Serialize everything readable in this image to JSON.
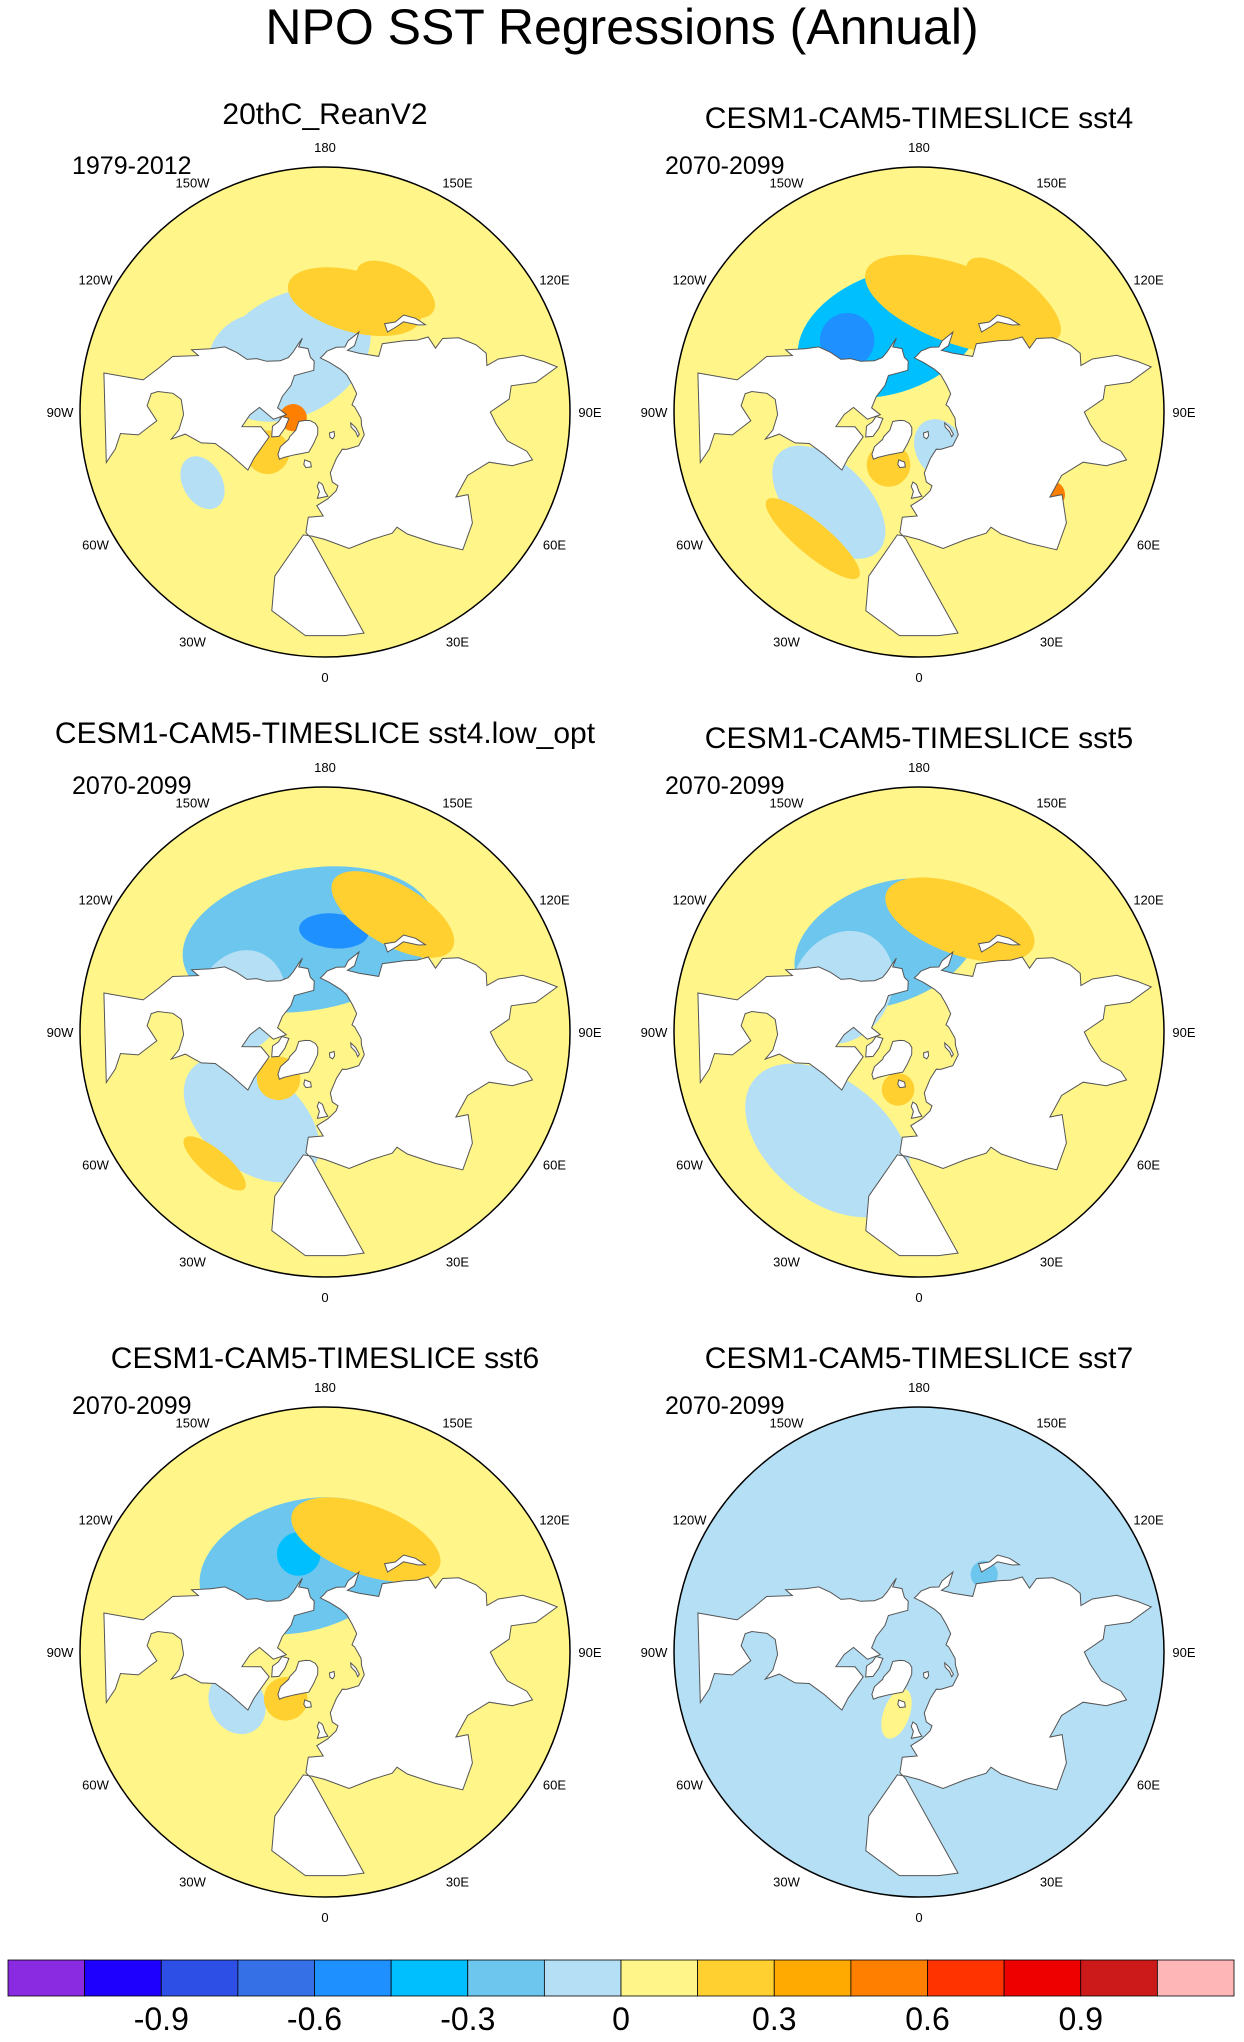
{
  "title": "NPO SST Regressions (Annual)",
  "colors": {
    "ocean_default": "#fff589",
    "land": "#ffffff",
    "coast": "#555555",
    "border": "#000000"
  },
  "panels": [
    {
      "name": "20thC_ReanV2",
      "period": "1979-2012",
      "background_level": 0.0,
      "blobs": [
        {
          "lat": 60,
          "lon": -150,
          "r": 22,
          "v": -0.15,
          "sx": 1.4,
          "sy": 1.0
        },
        {
          "lat": 48,
          "lon": -125,
          "r": 14,
          "v": -0.15,
          "sx": 1.2,
          "sy": 1.0
        },
        {
          "lat": 40,
          "lon": 165,
          "r": 14,
          "v": 0.15,
          "sx": 1.8,
          "sy": 0.8
        },
        {
          "lat": 30,
          "lon": 150,
          "r": 10,
          "v": 0.15,
          "sx": 1.6,
          "sy": 0.8
        },
        {
          "lat": 58,
          "lon": -55,
          "r": 8,
          "v": 0.15,
          "sx": 1.0,
          "sy": 1.0
        },
        {
          "lat": 75,
          "lon": -80,
          "r": 5,
          "v": 0.45,
          "sx": 1.0,
          "sy": 1.0
        },
        {
          "lat": 30,
          "lon": -60,
          "r": 8,
          "v": -0.15,
          "sx": 1.3,
          "sy": 0.9
        }
      ]
    },
    {
      "name": "CESM1-CAM5-TIMESLICE sst4",
      "period": "2070-2099",
      "background_level": 0.0,
      "blobs": [
        {
          "lat": 52,
          "lon": -160,
          "r": 22,
          "v": -0.45,
          "sx": 1.6,
          "sy": 1.0
        },
        {
          "lat": 45,
          "lon": -135,
          "r": 10,
          "v": -0.6,
          "sx": 1.0,
          "sy": 1.0
        },
        {
          "lat": 40,
          "lon": 160,
          "r": 18,
          "v": 0.15,
          "sx": 2.0,
          "sy": 0.8
        },
        {
          "lat": 28,
          "lon": 140,
          "r": 12,
          "v": 0.15,
          "sx": 1.8,
          "sy": 0.7
        },
        {
          "lat": 35,
          "lon": -45,
          "r": 16,
          "v": -0.15,
          "sx": 1.6,
          "sy": 0.9
        },
        {
          "lat": 22,
          "lon": -40,
          "r": 10,
          "v": 0.15,
          "sx": 2.2,
          "sy": 0.6
        },
        {
          "lat": 62,
          "lon": -30,
          "r": 8,
          "v": 0.15,
          "sx": 1.0,
          "sy": 1.0
        },
        {
          "lat": 70,
          "lon": 30,
          "r": 9,
          "v": -0.15,
          "sx": 1.0,
          "sy": 1.3
        },
        {
          "lat": 25,
          "lon": 58,
          "r": 5,
          "v": 0.45,
          "sx": 1.0,
          "sy": 1.0
        }
      ]
    },
    {
      "name": "CESM1-CAM5-TIMESLICE sst4.low_opt",
      "period": "2070-2099",
      "background_level": 0.0,
      "blobs": [
        {
          "lat": 48,
          "lon": -170,
          "r": 26,
          "v": -0.3,
          "sx": 1.8,
          "sy": 1.0
        },
        {
          "lat": 45,
          "lon": 175,
          "r": 8,
          "v": -0.6,
          "sx": 1.6,
          "sy": 0.8
        },
        {
          "lat": 32,
          "lon": 150,
          "r": 14,
          "v": 0.15,
          "sx": 1.8,
          "sy": 0.8
        },
        {
          "lat": 50,
          "lon": -110,
          "r": 16,
          "v": -0.15,
          "sx": 1.2,
          "sy": 1.0
        },
        {
          "lat": 40,
          "lon": -40,
          "r": 18,
          "v": -0.15,
          "sx": 1.6,
          "sy": 1.0
        },
        {
          "lat": 60,
          "lon": -45,
          "r": 8,
          "v": 0.15,
          "sx": 1.0,
          "sy": 1.0
        },
        {
          "lat": 20,
          "lon": -40,
          "r": 8,
          "v": 0.15,
          "sx": 1.8,
          "sy": 0.6
        }
      ]
    },
    {
      "name": "CESM1-CAM5-TIMESLICE sst5",
      "period": "2070-2099",
      "background_level": 0.0,
      "blobs": [
        {
          "lat": 48,
          "lon": -160,
          "r": 22,
          "v": -0.3,
          "sx": 1.6,
          "sy": 1.0
        },
        {
          "lat": 50,
          "lon": -120,
          "r": 18,
          "v": -0.15,
          "sx": 1.2,
          "sy": 1.0
        },
        {
          "lat": 38,
          "lon": 160,
          "r": 16,
          "v": 0.15,
          "sx": 1.8,
          "sy": 0.8
        },
        {
          "lat": 30,
          "lon": -40,
          "r": 22,
          "v": -0.15,
          "sx": 1.6,
          "sy": 1.0
        },
        {
          "lat": 62,
          "lon": -20,
          "r": 6,
          "v": 0.15,
          "sx": 1.0,
          "sy": 1.0
        }
      ]
    },
    {
      "name": "CESM1-CAM5-TIMESLICE sst6",
      "period": "2070-2099",
      "background_level": 0.0,
      "blobs": [
        {
          "lat": 50,
          "lon": -165,
          "r": 24,
          "v": -0.3,
          "sx": 1.6,
          "sy": 1.0
        },
        {
          "lat": 45,
          "lon": -165,
          "r": 8,
          "v": -0.45,
          "sx": 1.0,
          "sy": 1.0
        },
        {
          "lat": 38,
          "lon": 160,
          "r": 16,
          "v": 0.15,
          "sx": 1.8,
          "sy": 0.8
        },
        {
          "lat": 45,
          "lon": -60,
          "r": 10,
          "v": -0.15,
          "sx": 1.2,
          "sy": 1.0
        },
        {
          "lat": 62,
          "lon": -40,
          "r": 8,
          "v": 0.15,
          "sx": 1.0,
          "sy": 1.0
        }
      ]
    },
    {
      "name": "CESM1-CAM5-TIMESLICE sst7",
      "period": "2070-2099",
      "background_level": -0.15,
      "blobs": [
        {
          "lat": 60,
          "lon": -20,
          "r": 6,
          "v": 0.0,
          "sx": 0.8,
          "sy": 1.6
        },
        {
          "lat": 45,
          "lon": 140,
          "r": 5,
          "v": -0.3,
          "sx": 1.0,
          "sy": 1.0
        }
      ]
    }
  ],
  "map_labels": [
    "180",
    "150E",
    "120E",
    "90E",
    "60E",
    "30E",
    "0",
    "30W",
    "60W",
    "90W",
    "120W",
    "150W"
  ],
  "colorbar": {
    "colors": [
      "#8a2be2",
      "#1e00ff",
      "#2e4fe6",
      "#3570e6",
      "#1e90ff",
      "#00bfff",
      "#6cc6ee",
      "#b4dff5",
      "#fff589",
      "#ffd030",
      "#ffaa00",
      "#ff7f00",
      "#ff3300",
      "#ee0000",
      "#cc1a1a",
      "#ffb6b6"
    ],
    "levels": [
      -1.05,
      -0.9,
      -0.75,
      -0.6,
      -0.45,
      -0.3,
      -0.15,
      0,
      0.15,
      0.3,
      0.45,
      0.6,
      0.75,
      0.9,
      1.05
    ],
    "labels": [
      "-0.9",
      "-0.6",
      "-0.3",
      "0",
      "0.3",
      "0.6",
      "0.9"
    ]
  }
}
